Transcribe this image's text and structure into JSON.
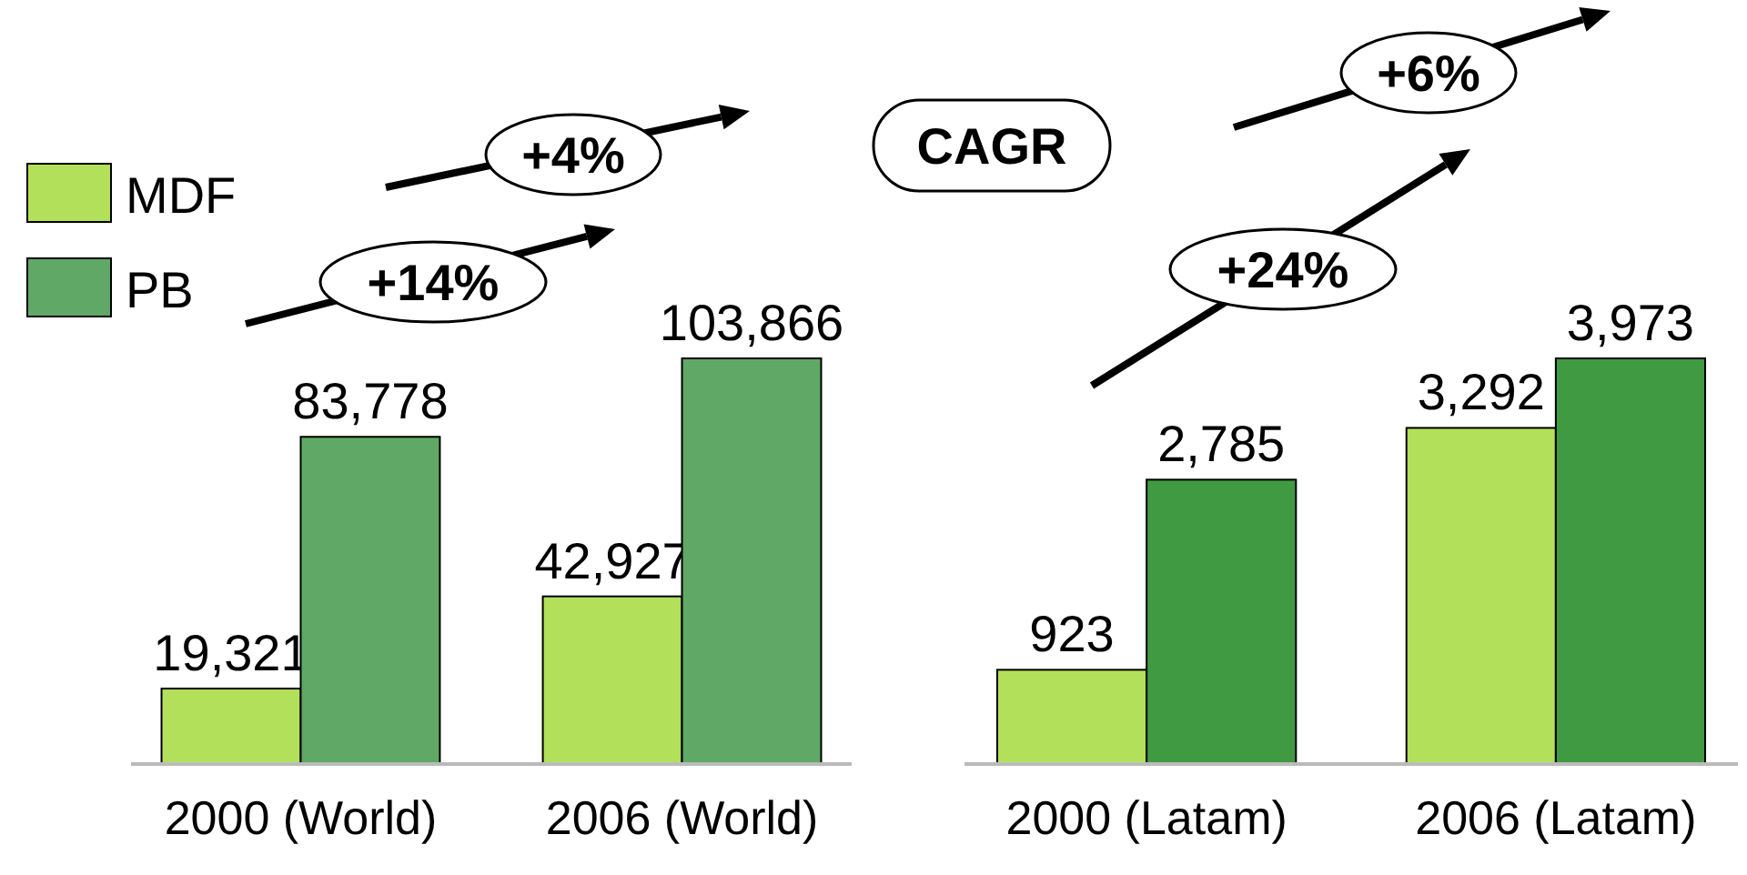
{
  "chart_data": [
    {
      "type": "bar",
      "categories": [
        "2000 (World)",
        "2006 (World)"
      ],
      "series": [
        {
          "name": "MDF",
          "color": "#b3e05a",
          "values": [
            19321,
            42927
          ],
          "value_labels": [
            "19,321",
            "42,927"
          ]
        },
        {
          "name": "PB",
          "color": "#5fa866",
          "values": [
            83778,
            103866
          ],
          "value_labels": [
            "83,778",
            "103,866"
          ]
        }
      ],
      "legend": "top left",
      "annotations": [
        "CAGR",
        "+14%",
        "+4%"
      ]
    },
    {
      "type": "bar",
      "categories": [
        "2000 (Latam)",
        "2006 (Latam)"
      ],
      "series": [
        {
          "color": "#b3e05a",
          "values": [
            923,
            3292
          ],
          "value_labels": [
            "923",
            "3,292"
          ]
        },
        {
          "color": "#3f9a42",
          "values": [
            2785,
            3973
          ],
          "value_labels": [
            "2,785",
            "3,973"
          ]
        }
      ],
      "annotations": [
        "+24%",
        "+6%"
      ]
    }
  ]
}
